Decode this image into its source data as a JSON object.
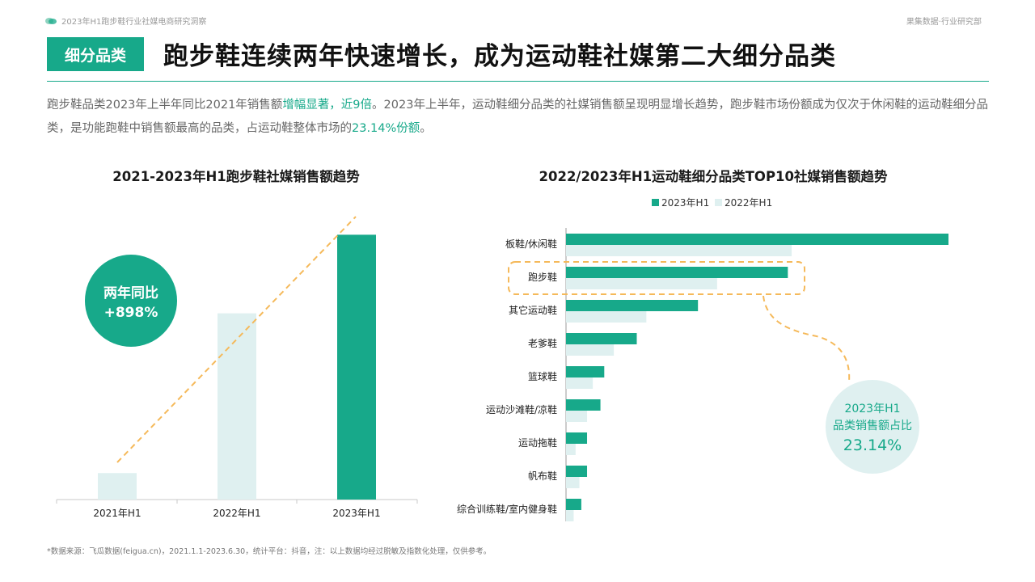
{
  "header": {
    "report_title": "2023年H1跑步鞋行业社媒电商研究洞察",
    "brand": "果集数据·行业研究部"
  },
  "section_tag": "细分品类",
  "headline": "跑步鞋连续两年快速增长，成为运动鞋社媒第二大细分品类",
  "intro": {
    "p1": "跑步鞋品类2023年上半年同比2021年销售额",
    "h1": "增幅显著，近9倍",
    "p2": "。2023年上半年，运动鞋细分品类的社媒销售额呈现明显增长趋势，跑步鞋市场份额成为仅次于休闲鞋的运动鞋细分品类，是功能跑鞋中销售额最高的品类，占运动鞋整体市场的",
    "h2": "23.14%份额",
    "p3": "。"
  },
  "colors": {
    "accent": "#17a98a",
    "light": "#dff0f0",
    "dashed": "#f5b95a"
  },
  "chart_data": [
    {
      "type": "bar",
      "title": "2021-2023年H1跑步鞋社媒销售额趋势",
      "categories": [
        "2021年H1",
        "2022年H1",
        "2023年H1"
      ],
      "values": [
        9.1,
        64,
        91
      ],
      "ylim": [
        0,
        100
      ],
      "callout": {
        "line1": "两年同比",
        "line2": "+898%"
      }
    },
    {
      "type": "bar",
      "orientation": "horizontal",
      "title": "2022/2023年H1运动鞋细分品类TOP10社媒销售额趋势",
      "categories": [
        "板鞋/休闲鞋",
        "跑步鞋",
        "其它运动鞋",
        "老爹鞋",
        "篮球鞋",
        "运动沙滩鞋/凉鞋",
        "运动拖鞋",
        "帆布鞋",
        "综合训练鞋/室内健身鞋"
      ],
      "series": [
        {
          "name": "2023年H1",
          "values": [
            100,
            58,
            34.5,
            18.5,
            10,
            9,
            5.5,
            5.5,
            4
          ]
        },
        {
          "name": "2022年H1",
          "values": [
            59,
            39.5,
            21,
            12.5,
            7,
            5.5,
            2.5,
            3.5,
            2
          ]
        }
      ],
      "xlim": [
        0,
        100
      ],
      "highlight": "跑步鞋",
      "callout": {
        "line1": "2023年H1",
        "line2": "品类销售额占比",
        "value": "23.14%"
      }
    }
  ],
  "footnote": "*数据来源：飞瓜数据(feigua.cn)，2021.1.1-2023.6.30，统计平台：抖音，注：以上数据均经过脱敏及指数化处理，仅供参考。"
}
